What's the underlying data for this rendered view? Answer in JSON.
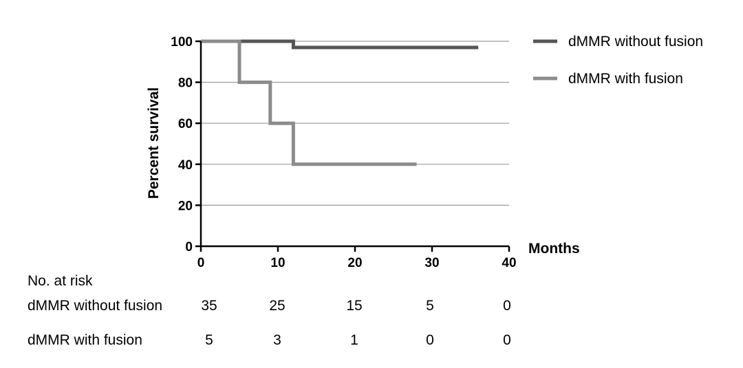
{
  "chart_data": {
    "type": "line",
    "subtype": "step",
    "title": "",
    "xlabel": "Months",
    "ylabel": "Percent survival",
    "xlim": [
      0,
      40
    ],
    "ylim": [
      0,
      100
    ],
    "x_ticks": [
      0,
      10,
      20,
      30,
      40
    ],
    "y_ticks": [
      0,
      20,
      40,
      60,
      80,
      100
    ],
    "grid": "horizontal",
    "legend_position": "right",
    "series": [
      {
        "name": "dMMR without fusion",
        "color": "#555555",
        "x": [
          0,
          12,
          12,
          36
        ],
        "y": [
          100,
          100,
          97,
          97
        ]
      },
      {
        "name": "dMMR with fusion",
        "color": "#8c8c8c",
        "x": [
          0,
          5,
          5,
          9,
          9,
          12,
          12,
          28
        ],
        "y": [
          100,
          100,
          80,
          80,
          60,
          60,
          40,
          40
        ]
      }
    ],
    "risk_table": {
      "header": "No. at risk",
      "timepoints": [
        0,
        10,
        20,
        30,
        40
      ],
      "rows": [
        {
          "label": "dMMR without fusion",
          "values": [
            "35",
            "25",
            "15",
            "5",
            "0"
          ]
        },
        {
          "label": "dMMR with fusion",
          "values": [
            "5",
            "3",
            "1",
            "0",
            "0"
          ]
        }
      ]
    }
  }
}
